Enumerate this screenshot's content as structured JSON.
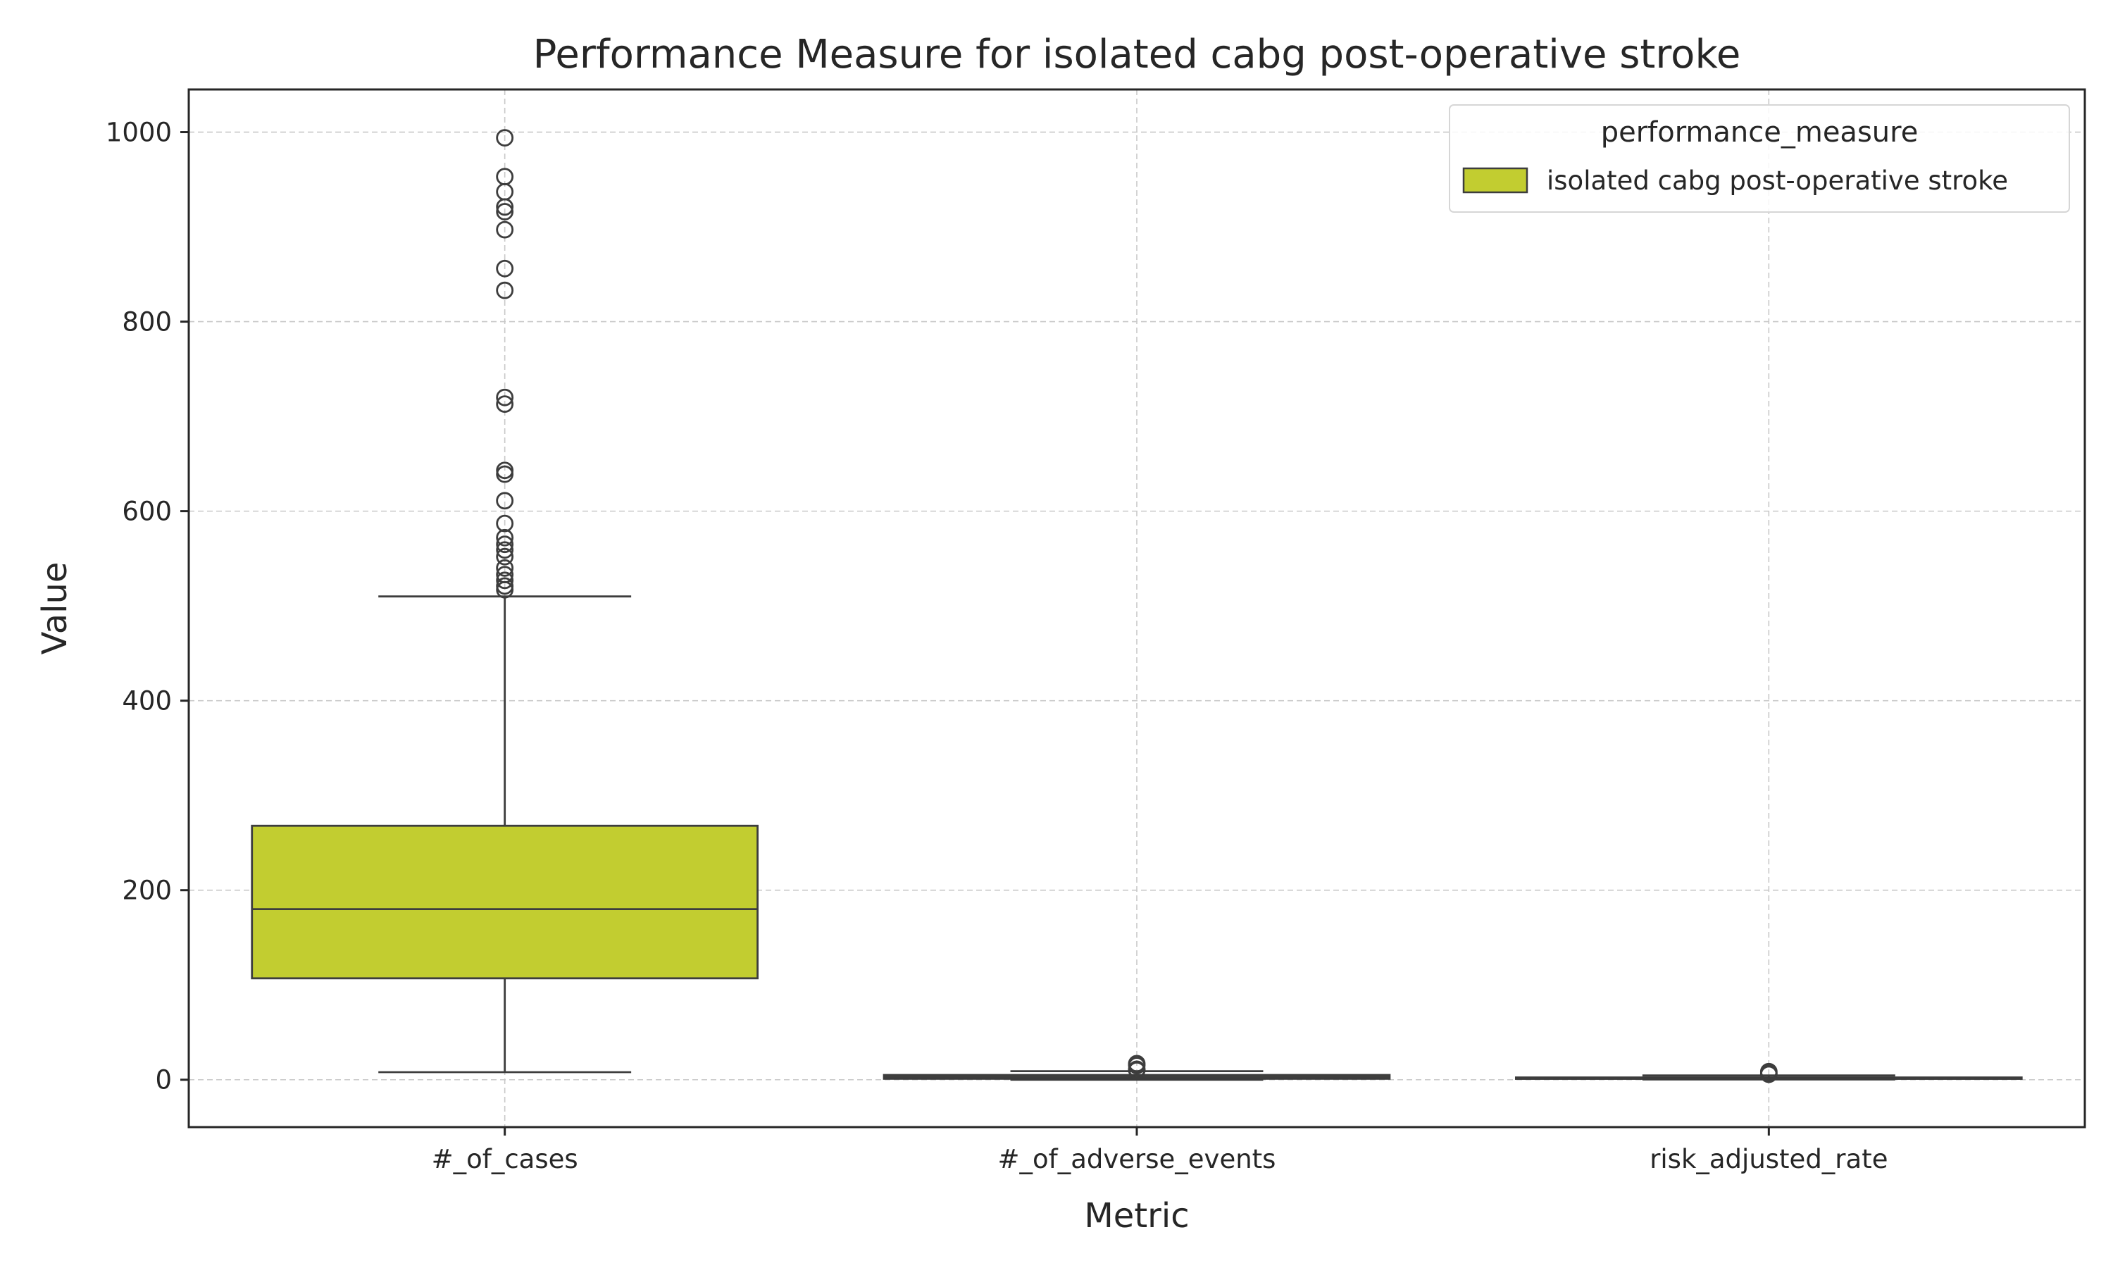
{
  "chart_data": {
    "type": "box",
    "title": "Performance Measure for isolated cabg post-operative stroke",
    "xlabel": "Metric",
    "ylabel": "Value",
    "ylim": [
      -50,
      1045
    ],
    "yticks": [
      0,
      200,
      400,
      600,
      800,
      1000
    ],
    "grid": true,
    "legend": {
      "title": "performance_measure",
      "placement": "top-right",
      "entries": [
        {
          "label": "isolated cabg post-operative stroke",
          "color": "#c2cd30"
        }
      ]
    },
    "box_color": "#c2cd30",
    "line_color": "#3d3d3d",
    "categories": [
      "#_of_cases",
      "#_of_adverse_events",
      "risk_adjusted_rate"
    ],
    "boxes": [
      {
        "category": "#_of_cases",
        "whisker_low": 8,
        "q1": 107,
        "median": 180,
        "q3": 268,
        "whisker_high": 510,
        "outliers": [
          994,
          953,
          937,
          921,
          916,
          897,
          856,
          833,
          720,
          713,
          643,
          639,
          611,
          587,
          572,
          565,
          559,
          552,
          540,
          533,
          527,
          521,
          517
        ]
      },
      {
        "category": "#_of_adverse_events",
        "whisker_low": 0,
        "q1": 1,
        "median": 3,
        "q3": 5,
        "whisker_high": 9,
        "outliers": [
          17,
          15,
          11,
          10
        ]
      },
      {
        "category": "risk_adjusted_rate",
        "whisker_low": 0.3,
        "q1": 0.9,
        "median": 1.5,
        "q3": 2.4,
        "whisker_high": 4.5,
        "outliers": [
          8.5,
          7.0,
          5.8
        ]
      }
    ]
  }
}
